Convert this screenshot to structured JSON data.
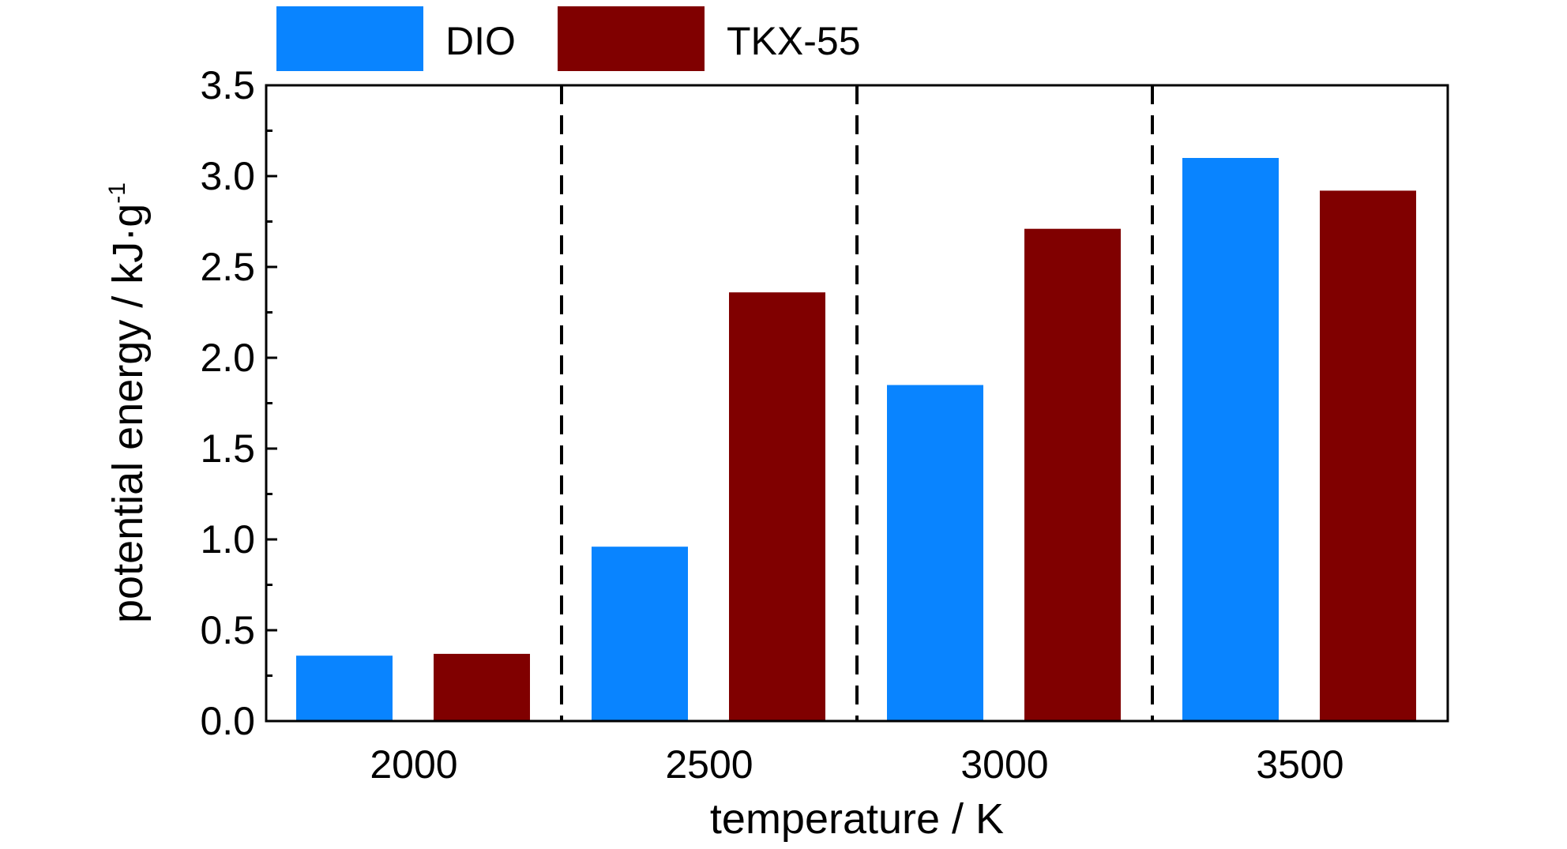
{
  "chart_data": {
    "type": "bar",
    "xlabel": "temperature / K",
    "ylabel": {
      "main": "potential energy / kJ·g",
      "sup": "-1"
    },
    "categories": [
      "2000",
      "2500",
      "3000",
      "3500"
    ],
    "series": [
      {
        "name": "DIO",
        "color": "#0984ff",
        "values": [
          0.36,
          0.96,
          1.85,
          3.1
        ]
      },
      {
        "name": "TKX-55",
        "color": "#800000",
        "values": [
          0.37,
          2.36,
          2.71,
          2.92
        ]
      }
    ],
    "ylim": [
      0,
      3.5
    ],
    "yticks": [
      "0.0",
      "0.5",
      "1.0",
      "1.5",
      "2.0",
      "2.5",
      "3.0",
      "3.5"
    ],
    "group_separators": "dashed",
    "legend_position": "top-left"
  }
}
